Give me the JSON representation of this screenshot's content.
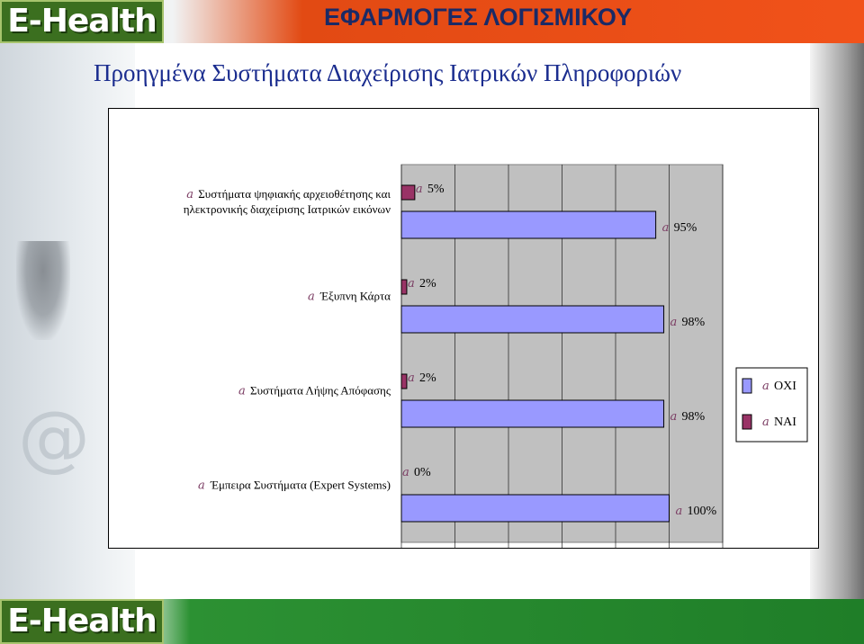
{
  "header": {
    "logo_text": "E-Health",
    "title": "ΕΦΑΡΜΟΓΕΣ ΛΟΓΙΣΜΙΚΟΥ"
  },
  "page_title": "Προηγμένα Συστήματα Διαχείρισης Ιατρικών Πληροφοριών",
  "footer": {
    "logo_text": "E-Health"
  },
  "colors": {
    "nai": "#993366",
    "oxi": "#9999ff",
    "plot_bg": "#c0c0c0",
    "header_orange": "#f1521a",
    "title_blue": "#1b2d8f"
  },
  "chart_data": {
    "type": "bar",
    "orientation": "horizontal",
    "categories": [
      [
        "Συστήματα ψηφιακής αρχειοθέτησης και",
        "ηλεκτρονικής διαχείρισης Ιατρικών εικόνων"
      ],
      [
        "Έξυπνη Κάρτα"
      ],
      [
        "Συστήματα Λήψης Απόφασης"
      ],
      [
        "Έμπειρα Συστήματα (Expert Systems)"
      ]
    ],
    "series": [
      {
        "name": "ΝΑΙ",
        "values": [
          5,
          2,
          2,
          0
        ],
        "labels": [
          "5%",
          "2%",
          "2%",
          "0%"
        ]
      },
      {
        "name": "ΟΧΙ",
        "values": [
          95,
          98,
          98,
          100
        ],
        "labels": [
          "95%",
          "98%",
          "98%",
          "100%"
        ]
      }
    ],
    "xlim": [
      0,
      120
    ],
    "x_ticks": [
      "0%",
      "20%",
      "40%",
      "60%",
      "80%",
      "100%",
      "120%"
    ],
    "legend": [
      "ΟΧΙ",
      "ΝΑΙ"
    ],
    "legend_position": "right",
    "grid": true
  }
}
